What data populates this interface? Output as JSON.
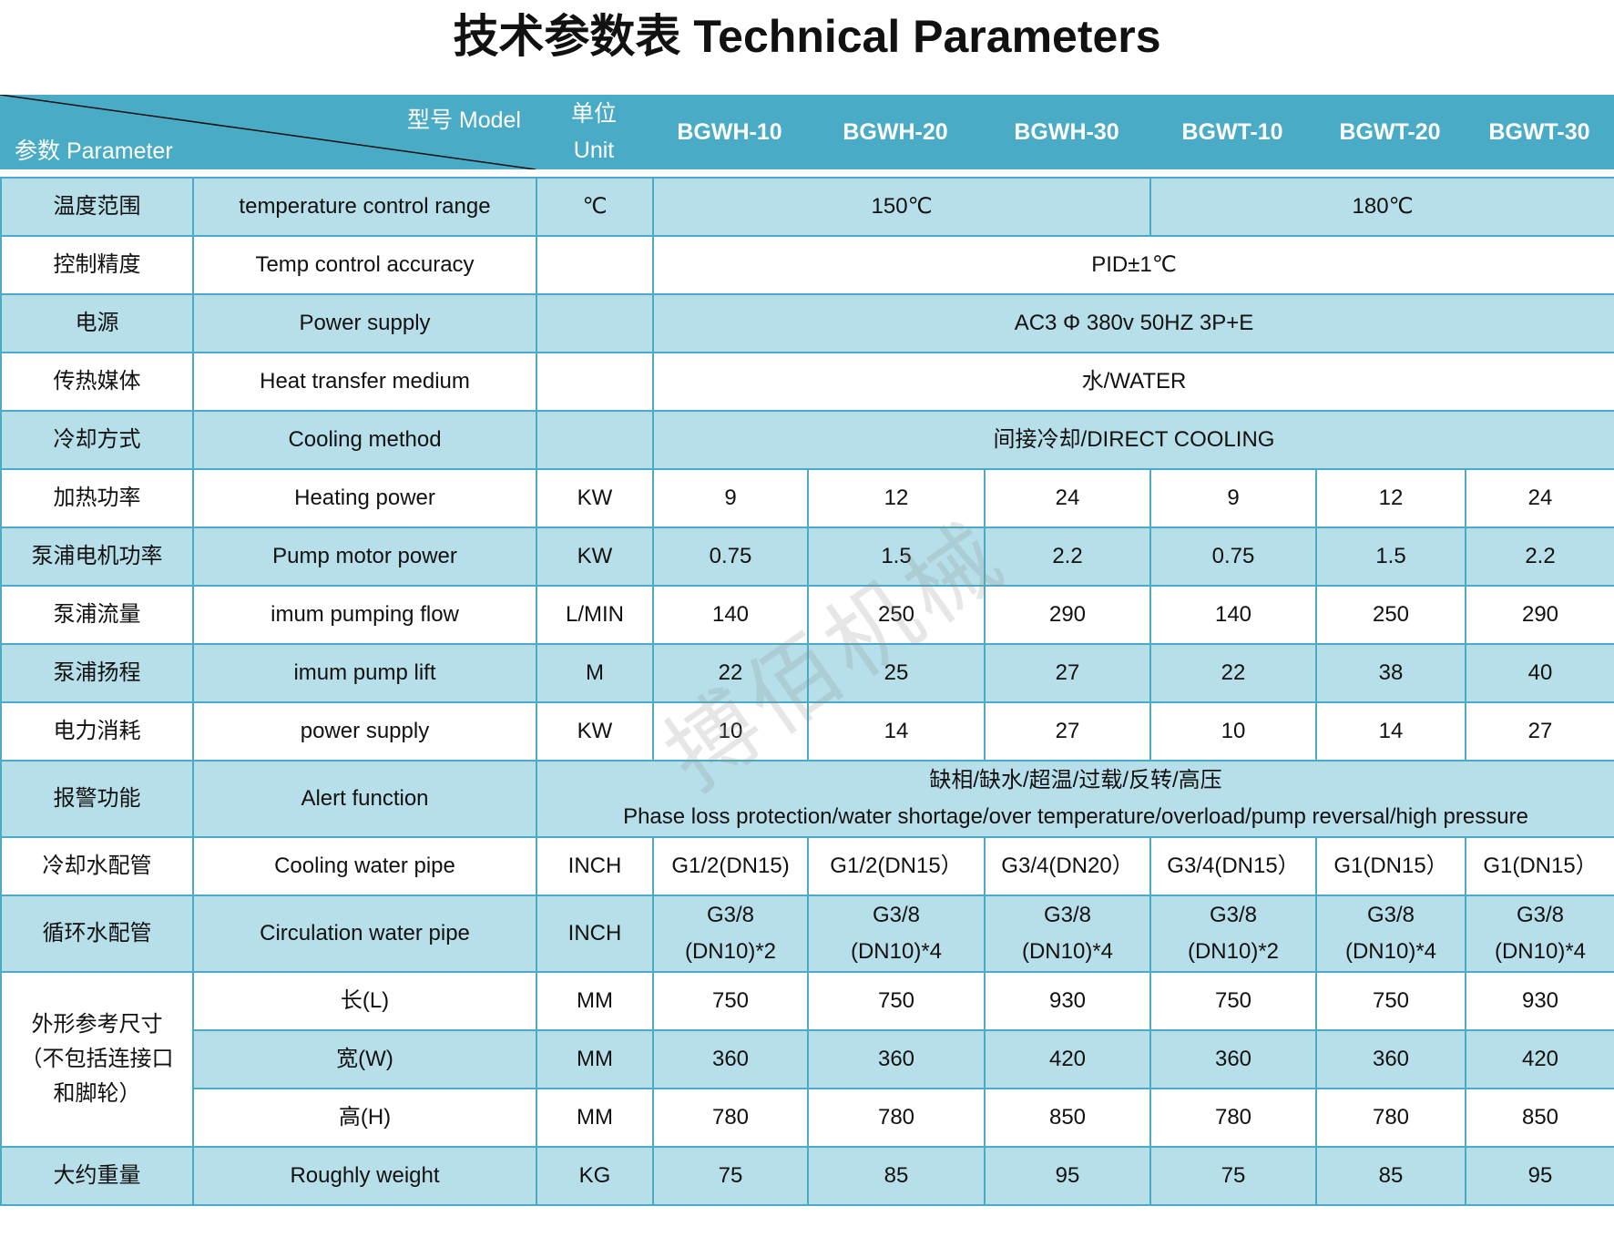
{
  "title": "技术参数表 Technical Parameters",
  "header": {
    "model_label": "型号 Model",
    "param_label": "参数 Parameter",
    "unit_label_cn": "单位",
    "unit_label_en": "Unit",
    "models": [
      "BGWH-10",
      "BGWH-20",
      "BGWH-30",
      "BGWT-10",
      "BGWT-20",
      "BGWT-30"
    ]
  },
  "colors": {
    "header_bg": "#4aabc6",
    "row_light": "#b7dfe9",
    "border": "#4aabc6"
  },
  "rows": [
    {
      "cn": "温度范围",
      "en": "temperature control range",
      "unit": "℃",
      "values": [
        "150℃",
        "180℃"
      ]
    },
    {
      "cn": "控制精度",
      "en": "Temp control accuracy",
      "unit": "",
      "values": [
        "PID±1℃"
      ]
    },
    {
      "cn": "电源",
      "en": "Power supply",
      "unit": "",
      "values": [
        "AC3 Φ 380v 50HZ 3P+E"
      ]
    },
    {
      "cn": "传热媒体",
      "en": "Heat transfer medium",
      "unit": "",
      "values": [
        "水/WATER"
      ]
    },
    {
      "cn": "冷却方式",
      "en": "Cooling method",
      "unit": "",
      "values": [
        "间接冷却/DIRECT COOLING"
      ]
    },
    {
      "cn": "加热功率",
      "en": "Heating power",
      "unit": "KW",
      "values": [
        "9",
        "12",
        "24",
        "9",
        "12",
        "24"
      ]
    },
    {
      "cn": "泵浦电机功率",
      "en": "Pump motor power",
      "unit": "KW",
      "values": [
        "0.75",
        "1.5",
        "2.2",
        "0.75",
        "1.5",
        "2.2"
      ]
    },
    {
      "cn": "泵浦流量",
      "en": "imum pumping flow",
      "unit": "L/MIN",
      "values": [
        "140",
        "250",
        "290",
        "140",
        "250",
        "290"
      ]
    },
    {
      "cn": "泵浦扬程",
      "en": "imum pump lift",
      "unit": "M",
      "values": [
        "22",
        "25",
        "27",
        "22",
        "38",
        "40"
      ]
    },
    {
      "cn": "电力消耗",
      "en": "power supply",
      "unit": "KW",
      "values": [
        "10",
        "14",
        "27",
        "10",
        "14",
        "27"
      ]
    },
    {
      "cn": "报警功能",
      "en": "Alert function",
      "values": [
        "缺相/缺水/超温/过载/反转/高压",
        "Phase loss protection/water shortage/over temperature/overload/pump reversal/high pressure"
      ]
    },
    {
      "cn": "冷却水配管",
      "en": "Cooling water pipe",
      "unit": "INCH",
      "values": [
        "G1/2(DN15)",
        "G1/2(DN15）",
        "G3/4(DN20）",
        "G3/4(DN15）",
        "G1(DN15）",
        "G1(DN15）"
      ]
    },
    {
      "cn": "循环水配管",
      "en": "Circulation water pipe",
      "unit": "INCH",
      "values": [
        "G3/8 (DN10)*2",
        "G3/8 (DN10)*4",
        "G3/8 (DN10)*4",
        "G3/8 (DN10)*2",
        "G3/8 (DN10)*4",
        "G3/8 (DN10)*4"
      ]
    }
  ],
  "dimensions": {
    "cn": "外形参考尺寸（不包括连接口和脚轮）",
    "rows": [
      {
        "en": "长(L)",
        "unit": "MM",
        "values": [
          "750",
          "750",
          "930",
          "750",
          "750",
          "930"
        ]
      },
      {
        "en": "宽(W)",
        "unit": "MM",
        "values": [
          "360",
          "360",
          "420",
          "360",
          "360",
          "420"
        ]
      },
      {
        "en": "高(H)",
        "unit": "MM",
        "values": [
          "780",
          "780",
          "850",
          "780",
          "780",
          "850"
        ]
      }
    ]
  },
  "weight": {
    "cn": "大约重量",
    "en": "Roughly weight",
    "unit": "KG",
    "values": [
      "75",
      "85",
      "95",
      "75",
      "85",
      "95"
    ]
  },
  "watermark": "搏佰机械"
}
